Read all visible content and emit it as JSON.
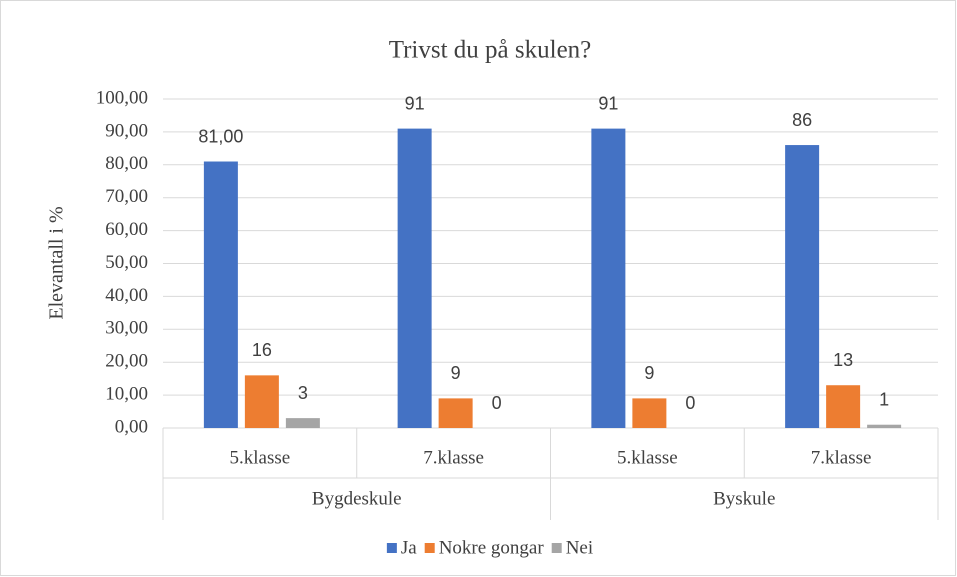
{
  "chart_data": {
    "type": "bar",
    "title": "Trivst du på skulen?",
    "y_label": "Elevantall i %",
    "categories": [
      "5.klasse",
      "7.klasse",
      "5.klasse",
      "7.klasse"
    ],
    "group_labels": [
      "Bygdeskule",
      "Byskule"
    ],
    "series": [
      {
        "name": "Ja",
        "color": "#4472c4",
        "values": [
          81,
          91,
          91,
          86
        ],
        "value_labels": [
          "81,00",
          "91",
          "91",
          "86"
        ]
      },
      {
        "name": "Nokre gongar",
        "color": "#ed7d31",
        "values": [
          16,
          9,
          9,
          13
        ]
      },
      {
        "name": "Nei",
        "color": "#a5a5a5",
        "values": [
          3,
          0,
          0,
          1
        ]
      }
    ],
    "ylim": [
      0,
      100
    ],
    "yticks": [
      {
        "value": 0,
        "label": "0,00"
      },
      {
        "value": 10,
        "label": "10,00"
      },
      {
        "value": 20,
        "label": "20,00"
      },
      {
        "value": 30,
        "label": "30,00"
      },
      {
        "value": 40,
        "label": "40,00"
      },
      {
        "value": 50,
        "label": "50,00"
      },
      {
        "value": 60,
        "label": "60,00"
      },
      {
        "value": 70,
        "label": "70,00"
      },
      {
        "value": 80,
        "label": "80,00"
      },
      {
        "value": 90,
        "label": "90,00"
      },
      {
        "value": 100,
        "label": "100,00"
      }
    ],
    "grid": true,
    "legend": "bottom"
  }
}
